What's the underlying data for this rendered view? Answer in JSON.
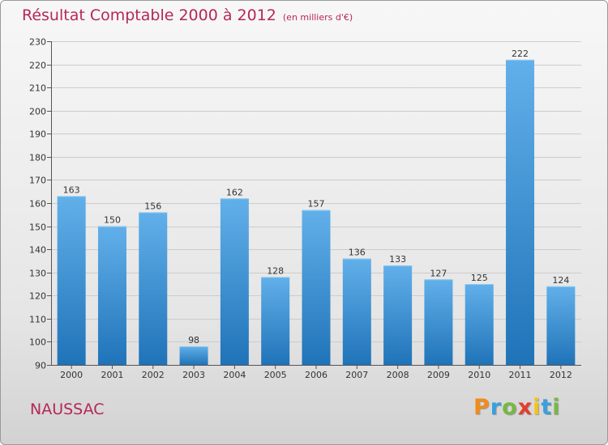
{
  "header": {
    "title": "Résultat Comptable 2000 à 2012",
    "subtitle": "(en milliers d'€)"
  },
  "commune": "NAUSSAC",
  "logo": {
    "letters": [
      "P",
      "r",
      "o",
      "x",
      "i",
      "t",
      "i"
    ],
    "colors": [
      "#f08b1d",
      "#3aa0dc",
      "#78b843",
      "#e23e2f",
      "#f2c318",
      "#3aa0dc",
      "#78b843"
    ]
  },
  "colors": {
    "title": "#b5275a",
    "bar_top": "#62b0ea",
    "bar_bottom": "#1f73b8",
    "grid": "#cccccc"
  },
  "chart_data": {
    "type": "bar",
    "title": "Résultat Comptable 2000 à 2012",
    "subtitle": "(en milliers d'€)",
    "categories": [
      "2000",
      "2001",
      "2002",
      "2003",
      "2004",
      "2005",
      "2006",
      "2007",
      "2008",
      "2009",
      "2010",
      "2011",
      "2012"
    ],
    "values": [
      163,
      150,
      156,
      98,
      162,
      128,
      157,
      136,
      133,
      127,
      125,
      222,
      124
    ],
    "ylim": [
      90,
      230
    ],
    "yticks": [
      90,
      100,
      110,
      120,
      130,
      140,
      150,
      160,
      170,
      180,
      190,
      200,
      210,
      220,
      230
    ],
    "grid": true,
    "data_labels": true
  }
}
